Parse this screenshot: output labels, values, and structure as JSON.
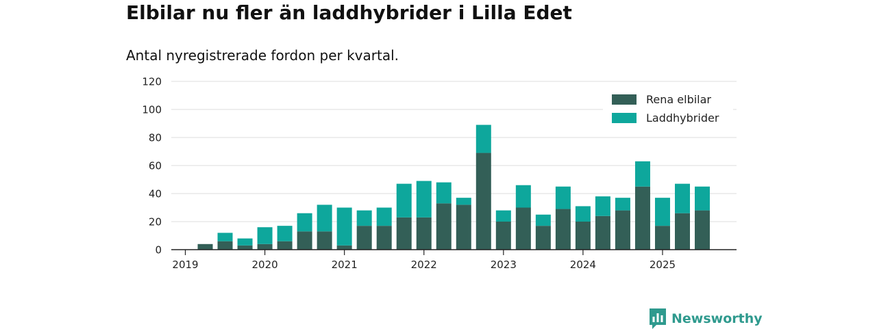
{
  "header": {
    "title": "Elbilar nu fler än laddhybrider i Lilla Edet",
    "subtitle": "Antal nyregistrerade fordon per kvartal."
  },
  "brand": {
    "name": "Newsworthy",
    "icon": "newsworthy-logo-icon",
    "color": "#2f9a8e"
  },
  "chart_data": {
    "type": "bar",
    "stacked": true,
    "title": "Elbilar nu fler än laddhybrider i Lilla Edet",
    "subtitle": "Antal nyregistrerade fordon per kvartal.",
    "xlabel": "",
    "ylabel": "",
    "ylim": [
      0,
      120
    ],
    "yticks": [
      0,
      20,
      40,
      60,
      80,
      100,
      120
    ],
    "grid": true,
    "legend_position": "top-right",
    "categories": [
      "2019-Q1",
      "2019-Q2",
      "2019-Q3",
      "2019-Q4",
      "2020-Q1",
      "2020-Q2",
      "2020-Q3",
      "2020-Q4",
      "2021-Q1",
      "2021-Q2",
      "2021-Q3",
      "2021-Q4",
      "2022-Q1",
      "2022-Q2",
      "2022-Q3",
      "2022-Q4",
      "2023-Q1",
      "2023-Q2",
      "2023-Q3",
      "2023-Q4",
      "2024-Q1",
      "2024-Q2",
      "2024-Q3",
      "2024-Q4",
      "2025-Q1",
      "2025-Q2",
      "2025-Q3"
    ],
    "year_ticks": [
      {
        "label": "2019",
        "index": 0
      },
      {
        "label": "2020",
        "index": 4
      },
      {
        "label": "2021",
        "index": 8
      },
      {
        "label": "2022",
        "index": 12
      },
      {
        "label": "2023",
        "index": 16
      },
      {
        "label": "2024",
        "index": 20
      },
      {
        "label": "2025",
        "index": 24
      }
    ],
    "series": [
      {
        "name": "Rena elbilar",
        "color": "#335f57",
        "values": [
          0,
          4,
          6,
          3,
          4,
          6,
          13,
          13,
          3,
          17,
          17,
          23,
          23,
          33,
          32,
          69,
          20,
          30,
          17,
          29,
          20,
          24,
          28,
          45,
          17,
          26,
          28
        ]
      },
      {
        "name": "Laddhybrider",
        "color": "#0ea79c",
        "values": [
          0,
          0,
          6,
          5,
          12,
          11,
          13,
          19,
          27,
          11,
          13,
          24,
          26,
          15,
          5,
          20,
          8,
          16,
          8,
          16,
          11,
          14,
          9,
          18,
          20,
          21,
          17
        ]
      }
    ]
  }
}
